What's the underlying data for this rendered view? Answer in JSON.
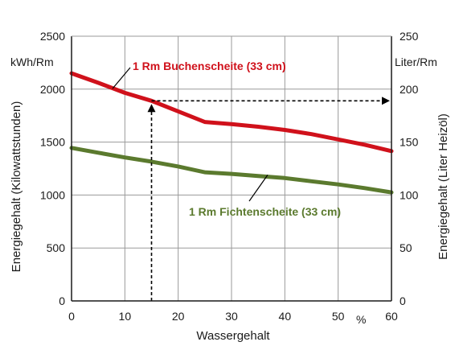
{
  "chart_data": {
    "type": "line",
    "xlabel": "Wassergehalt",
    "x_unit": "%",
    "ylabel_left": "Energiegehalt (Kilowattstunden)",
    "ylabel_right": "Energiegehalt (Liter Heizöl)",
    "y_unit_left": "kWh/Rm",
    "y_unit_right": "Liter/Rm",
    "xlim": [
      0,
      60
    ],
    "ylim_left": [
      0,
      2500
    ],
    "ylim_right": [
      0,
      250
    ],
    "x_ticks": [
      "0",
      "10",
      "20",
      "30",
      "40",
      "50",
      "60"
    ],
    "y_ticks_left": [
      "0",
      "500",
      "1000",
      "1500",
      "2000",
      "2500"
    ],
    "y_ticks_right": [
      "0",
      "50",
      "100",
      "150",
      "200",
      "250"
    ],
    "grid": true,
    "colors": {
      "beech": "#d0111b",
      "spruce": "#5b7a2e",
      "grid": "#9a9a9a",
      "axes": "#1a1a1a"
    },
    "series": [
      {
        "name": "1 Rm Buchenscheite (33 cm)",
        "color": "#d0111b",
        "points": [
          [
            0,
            2150
          ],
          [
            5,
            2060
          ],
          [
            10,
            1965
          ],
          [
            15,
            1890
          ],
          [
            20,
            1790
          ],
          [
            25,
            1690
          ],
          [
            30,
            1670
          ],
          [
            35,
            1645
          ],
          [
            40,
            1615
          ],
          [
            45,
            1575
          ],
          [
            50,
            1525
          ],
          [
            55,
            1475
          ],
          [
            60,
            1415
          ]
        ]
      },
      {
        "name": "1 Rm Fichtenscheite (33 cm)",
        "color": "#5b7a2e",
        "points": [
          [
            0,
            1445
          ],
          [
            5,
            1400
          ],
          [
            10,
            1355
          ],
          [
            15,
            1315
          ],
          [
            20,
            1270
          ],
          [
            25,
            1215
          ],
          [
            30,
            1200
          ],
          [
            35,
            1180
          ],
          [
            40,
            1160
          ],
          [
            45,
            1130
          ],
          [
            50,
            1100
          ],
          [
            55,
            1065
          ],
          [
            60,
            1025
          ]
        ]
      }
    ],
    "annotation": {
      "type": "dashed-arrow",
      "x": 15,
      "y": 1890,
      "description": "reading at 15 % water content, projected to right axis"
    }
  }
}
